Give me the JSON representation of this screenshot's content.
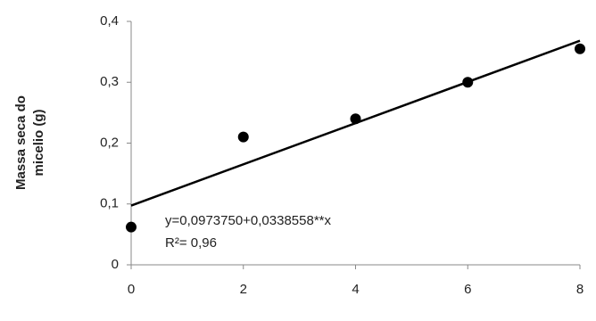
{
  "chart_data": {
    "type": "scatter",
    "y_label": [
      "Massa seca do",
      "micelio (g)"
    ],
    "x": [
      0,
      2,
      4,
      6,
      8
    ],
    "values": [
      0.062,
      0.21,
      0.24,
      0.3,
      0.355
    ],
    "color": "#000000",
    "trendline": {
      "intercept": 0.097375,
      "slope": 0.0338558,
      "color": "#000000"
    },
    "annotations": [
      "y=0,0973750+0,0338558**x",
      "R²= 0,96"
    ],
    "xlim": [
      0,
      8
    ],
    "xticks": [
      0,
      2,
      4,
      6,
      8
    ],
    "ylim": [
      0,
      0.4
    ],
    "yticks": [
      0,
      {
        "value": 0.1,
        "label": "0,1"
      },
      {
        "value": 0.2,
        "label": "0,2"
      },
      {
        "value": 0.3,
        "label": "0,3"
      },
      {
        "value": 0.4,
        "label": "0,4"
      }
    ],
    "grid": false
  }
}
